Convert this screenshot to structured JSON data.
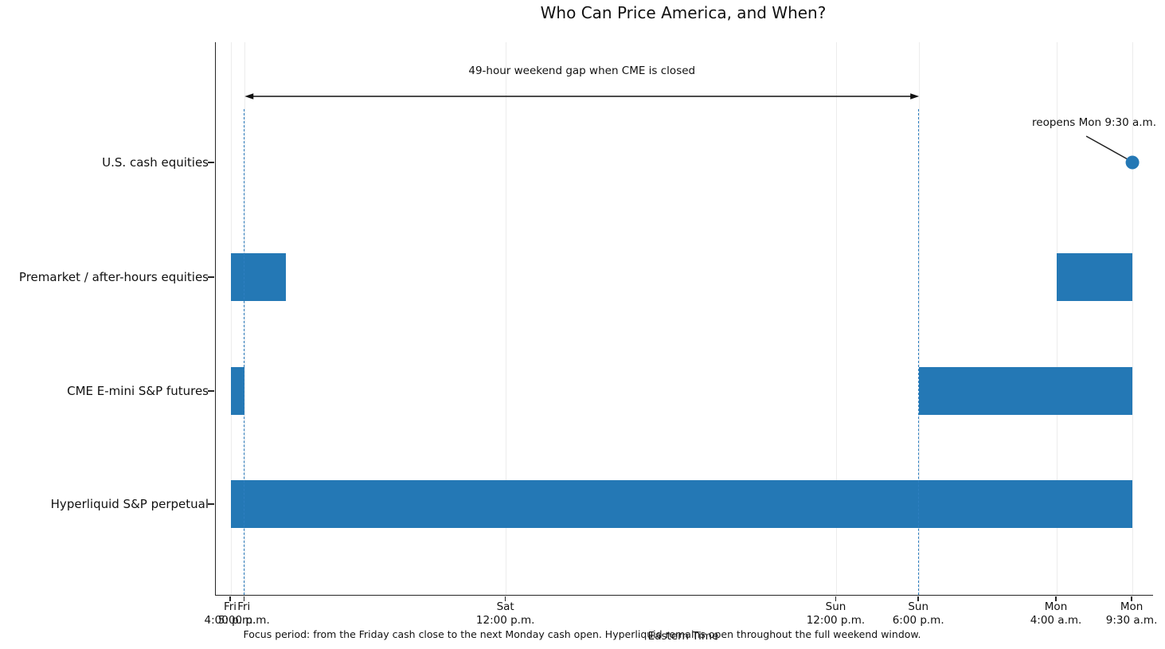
{
  "chart_data": {
    "type": "bar",
    "variant": "horizontal-timeline-gantt",
    "title": "Who Can Price America, and When?",
    "xlabel": "Eastern Time",
    "caption": "Focus period: from the Friday cash close to the next Monday cash open. Hyperliquid remains open throughout the full weekend window.",
    "x_unit": "hours after Friday 4:00 p.m. Eastern Time",
    "xlim": [
      -1.1,
      67.0
    ],
    "grid": true,
    "bar_color": "#2478b5",
    "grid_color": "#ececec",
    "dashed_line_color": "#2e7fc1",
    "categories": [
      "U.S. cash equities",
      "Premarket / after-hours equities",
      "CME E-mini S&P futures",
      "Hyperliquid S&P perpetual"
    ],
    "x_ticks": [
      {
        "hour": 0,
        "line1": "Fri",
        "line2": "4:00 p.m."
      },
      {
        "hour": 1,
        "line1": "Fri",
        "line2": "5:00 p.m."
      },
      {
        "hour": 20,
        "line1": "Sat",
        "line2": "12:00 p.m."
      },
      {
        "hour": 44,
        "line1": "Sun",
        "line2": "12:00 p.m."
      },
      {
        "hour": 50,
        "line1": "Sun",
        "line2": "6:00 p.m."
      },
      {
        "hour": 60,
        "line1": "Mon",
        "line2": "4:00 a.m."
      },
      {
        "hour": 65.5,
        "line1": "Mon",
        "line2": "9:30 a.m."
      }
    ],
    "sessions": [
      {
        "category": 1,
        "start": 0,
        "end": 4
      },
      {
        "category": 1,
        "start": 60,
        "end": 65.5
      },
      {
        "category": 2,
        "start": 0,
        "end": 1
      },
      {
        "category": 2,
        "start": 50,
        "end": 65.5
      },
      {
        "category": 3,
        "start": 0,
        "end": 65.5
      }
    ],
    "marker": {
      "category": 0,
      "hour": 65.5,
      "label": "reopens Mon 9:30 a.m."
    },
    "reference_lines": [
      {
        "hour": 1
      },
      {
        "hour": 50
      }
    ],
    "gap_annotation": {
      "text": "49-hour weekend gap when CME is closed",
      "from_hour": 1,
      "to_hour": 50
    }
  }
}
